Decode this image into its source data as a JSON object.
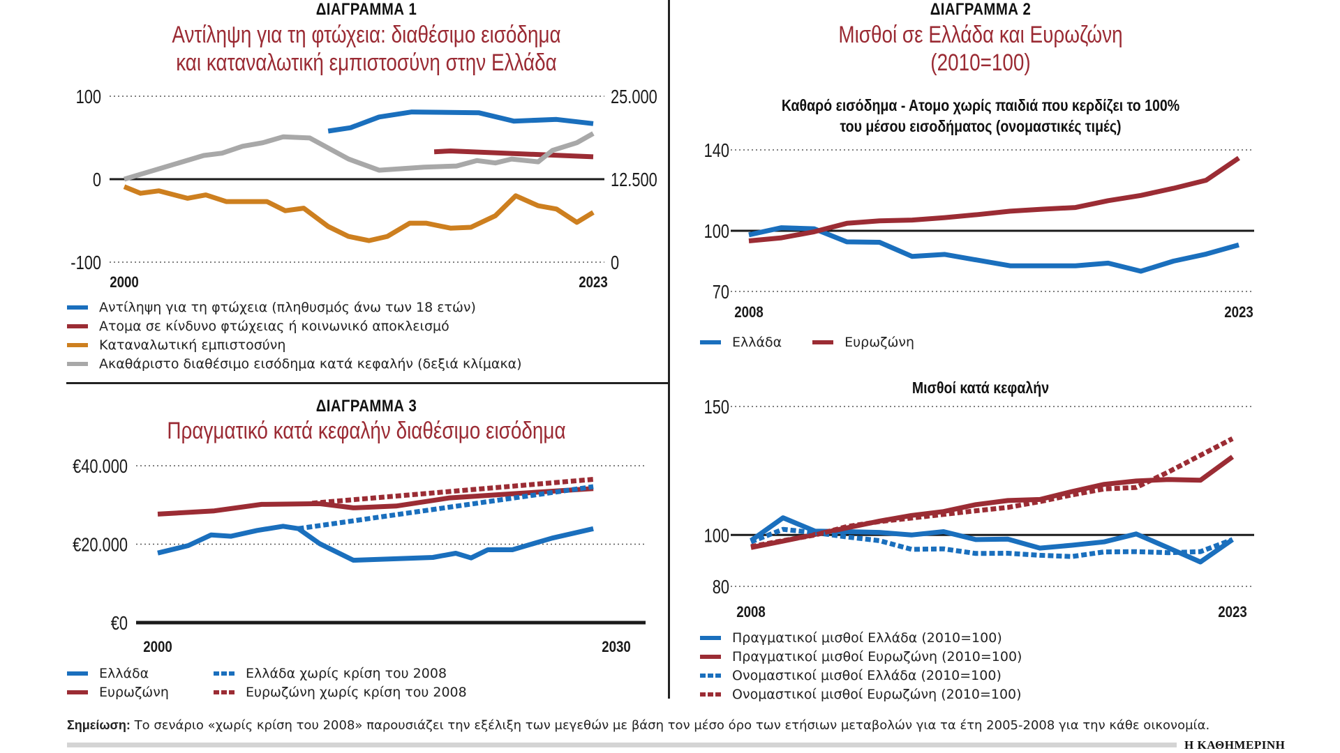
{
  "colors": {
    "blue": "#1a6fbd",
    "red": "#9b2c34",
    "orange": "#cd7f1f",
    "gray": "#a8a8a8",
    "title_red": "#9a2a33"
  },
  "chart1": {
    "kicker": "ΔΙΑΓΡΑΜΜΑ 1",
    "title_line1": "Αντίληψη για τη φτώχεια: διαθέσιμο εισόδημα",
    "title_line2": "και καταναλωτική εμπιστοσύνη στην Ελλάδα",
    "legend": [
      {
        "label": "Αντίληψη για τη φτώχεια (πληθυσμός άνω των 18 ετών)",
        "color": "#1a6fbd",
        "style": "solid"
      },
      {
        "label": "Ατομα σε κίνδυνο φτώχειας ή κοινωνικό αποκλεισμό",
        "color": "#9b2c34",
        "style": "solid"
      },
      {
        "label": "Καταναλωτική εμπιστοσύνη",
        "color": "#cd7f1f",
        "style": "solid"
      },
      {
        "label": "Ακαθάριστο διαθέσιμο εισόδημα κατά κεφαλήν (δεξιά κλίμακα)",
        "color": "#a8a8a8",
        "style": "solid"
      }
    ]
  },
  "chart2": {
    "kicker": "ΔΙΑΓΡΑΜΜΑ 2",
    "title_line1": "Μισθοί σε Ελλάδα και Ευρωζώνη",
    "title_line2": "(2010=100)",
    "top_subtitle_line1": "Καθαρό εισόδημα - Ατομο χωρίς παιδιά που κερδίζει το 100%",
    "top_subtitle_line2": "του μέσου εισοδήματος (ονομαστικές τιμές)",
    "top_legend": [
      {
        "label": "Ελλάδα",
        "color": "#1a6fbd",
        "style": "solid"
      },
      {
        "label": "Ευρωζώνη",
        "color": "#9b2c34",
        "style": "solid"
      }
    ],
    "bottom_subtitle": "Μισθοί κατά κεφαλήν",
    "bottom_legend": [
      {
        "label": "Πραγματικοί μισθοί Ελλάδα (2010=100)",
        "color": "#1a6fbd",
        "style": "solid"
      },
      {
        "label": "Πραγματικοί μισθοί Ευρωζώνη (2010=100)",
        "color": "#9b2c34",
        "style": "solid"
      },
      {
        "label": "Ονομαστικοί μισθοί Ελλάδα (2010=100)",
        "color": "#1a6fbd",
        "style": "dashed"
      },
      {
        "label": "Ονομαστικοί μισθοί Ευρωζώνη (2010=100)",
        "color": "#9b2c34",
        "style": "dashed"
      }
    ]
  },
  "chart3": {
    "kicker": "ΔΙΑΓΡΑΜΜΑ 3",
    "title": "Πραγματικό κατά κεφαλήν διαθέσιμο εισόδημα",
    "legend": [
      {
        "label": "Ελλάδα",
        "color": "#1a6fbd",
        "style": "solid"
      },
      {
        "label": "Ευρωζώνη",
        "color": "#9b2c34",
        "style": "solid"
      },
      {
        "label": "Ελλάδα χωρίς κρίση του 2008",
        "color": "#1a6fbd",
        "style": "dashed"
      },
      {
        "label": "Ευρωζώνη χωρίς κρίση του 2008",
        "color": "#9b2c34",
        "style": "dashed"
      }
    ]
  },
  "footer": {
    "note_label": "Σημείωση:",
    "note_text": "Το σενάριο «χωρίς κρίση του 2008» παρουσιάζει την εξέλιξη των μεγεθών με βάση τον μέσο όρο των ετήσιων μεταβολών για τα έτη 2005-2008 για την κάθε οικονομία.",
    "brand": "Η ΚΑΘΗΜΕΡΙΝΗ"
  },
  "chart_data": [
    {
      "id": "chart1",
      "type": "line",
      "title": "Αντίληψη για τη φτώχεια: διαθέσιμο εισόδημα και καταναλωτική εμπιστοσύνη στην Ελλάδα",
      "xlim": [
        2000,
        2023
      ],
      "x_ticks": [
        {
          "value": 2000,
          "label": "2000"
        },
        {
          "value": 2023,
          "label": "2023"
        }
      ],
      "ylim": [
        -100,
        100
      ],
      "y_ticks": [
        {
          "value": 100,
          "label": "100"
        },
        {
          "value": 0,
          "label": "0"
        },
        {
          "value": -100,
          "label": "-100"
        }
      ],
      "y2lim": [
        0,
        25000
      ],
      "y2_ticks": [
        {
          "value": 25000,
          "label": "25.000"
        },
        {
          "value": 12500,
          "label": "12.500"
        },
        {
          "value": 0,
          "label": "0"
        }
      ],
      "grid": "dotted at 100 and -100, solid baseline at 0",
      "series": [
        {
          "name": "Αντίληψη για τη φτώχεια (πληθυσμός άνω των 18 ετών)",
          "axis": "left",
          "color": "#1a6fbd",
          "style": "solid",
          "x": [
            2010,
            2011.1,
            2012.5,
            2014.1,
            2017.4,
            2019.1,
            2021.2,
            2023
          ],
          "y": [
            58,
            62,
            75,
            81,
            80,
            70,
            72,
            67
          ]
        },
        {
          "name": "Ατομα σε κίνδυνο φτώχειας ή κοινωνικό αποκλεισμό",
          "axis": "left",
          "color": "#9b2c34",
          "style": "solid",
          "x": [
            2015.2,
            2016,
            2023
          ],
          "y": [
            33,
            34,
            27
          ]
        },
        {
          "name": "Καταναλωτική εμπιστοσύνη",
          "axis": "left",
          "color": "#cd7f1f",
          "style": "solid",
          "x": [
            2000,
            2000.8,
            2001.7,
            2003.1,
            2004,
            2005,
            2007,
            2007.9,
            2008.8,
            2010,
            2011,
            2012,
            2012.9,
            2014,
            2014.8,
            2016,
            2017,
            2018.2,
            2019.2,
            2020.3,
            2021.2,
            2022.2,
            2023
          ],
          "y": [
            -9,
            -17,
            -14,
            -23,
            -19,
            -27,
            -27,
            -38,
            -35,
            -57,
            -69,
            -74,
            -69,
            -53,
            -53,
            -59,
            -58,
            -44,
            -20,
            -32,
            -36,
            -52,
            -40
          ]
        },
        {
          "name": "Ακαθάριστο διαθέσιμο εισόδημα κατά κεφαλήν (δεξιά κλίμακα)",
          "axis": "right",
          "color": "#a8a8a8",
          "style": "solid",
          "x": [
            2000,
            2003.9,
            2004.8,
            2005.8,
            2006.8,
            2007.8,
            2009.1,
            2011,
            2012.5,
            2014.7,
            2016.3,
            2017.3,
            2018.2,
            2019,
            2020.3,
            2021,
            2022.2,
            2023
          ],
          "y": [
            12500,
            16070,
            16420,
            17460,
            17990,
            18890,
            18710,
            15540,
            13860,
            14320,
            14490,
            15300,
            14950,
            15540,
            15120,
            16840,
            17990,
            19390
          ]
        }
      ]
    },
    {
      "id": "chart2_top",
      "type": "line",
      "title": "Καθαρό εισόδημα - Ατομο χωρίς παιδιά που κερδίζει το 100% του μέσου εισοδήματος (ονομαστικές τιμές)",
      "xlim": [
        2008,
        2023
      ],
      "x_ticks": [
        {
          "value": 2008,
          "label": "2008"
        },
        {
          "value": 2023,
          "label": "2023"
        }
      ],
      "ylim": [
        70,
        140
      ],
      "y_ticks": [
        {
          "value": 140,
          "label": "140"
        },
        {
          "value": 100,
          "label": "100"
        },
        {
          "value": 70,
          "label": "70"
        }
      ],
      "grid": "dotted at 140 and 70, solid at 100",
      "categories": [
        2008,
        2009,
        2010,
        2011,
        2012,
        2013,
        2014,
        2015,
        2016,
        2017,
        2018,
        2019,
        2020,
        2021,
        2022,
        2023
      ],
      "series": [
        {
          "name": "Ελλάδα",
          "color": "#1a6fbd",
          "style": "solid",
          "values": [
            98,
            101.5,
            101,
            94.5,
            94.3,
            87.3,
            88.3,
            85.5,
            82.7,
            82.7,
            82.7,
            84,
            80,
            85,
            88.5,
            93
          ]
        },
        {
          "name": "Ευρωζώνη",
          "color": "#9b2c34",
          "style": "solid",
          "values": [
            95,
            96.5,
            99.5,
            103.7,
            104.9,
            105.3,
            106.5,
            108,
            109.7,
            110.7,
            111.5,
            114.9,
            117.5,
            121,
            125,
            136
          ]
        }
      ]
    },
    {
      "id": "chart2_bottom",
      "type": "line",
      "title": "Μισθοί κατά κεφαλήν",
      "xlim": [
        2008,
        2023
      ],
      "x_ticks": [
        {
          "value": 2008,
          "label": "2008"
        },
        {
          "value": 2023,
          "label": "2023"
        }
      ],
      "ylim": [
        80,
        150
      ],
      "y_ticks": [
        {
          "value": 150,
          "label": "150"
        },
        {
          "value": 100,
          "label": "100"
        },
        {
          "value": 80,
          "label": "80"
        }
      ],
      "grid": "dotted at 150 and 80, solid at 100",
      "categories": [
        2008,
        2009,
        2010,
        2011,
        2012,
        2013,
        2014,
        2015,
        2016,
        2017,
        2018,
        2019,
        2020,
        2021,
        2022,
        2023
      ],
      "series": [
        {
          "name": "Πραγματικοί μισθοί Ελλάδα (2010=100)",
          "color": "#1a6fbd",
          "style": "solid",
          "values": [
            97.8,
            106.7,
            101.5,
            101.3,
            101,
            100,
            101.3,
            98.2,
            98.4,
            94.9,
            96,
            97.3,
            100.4,
            95,
            89.5,
            98.2
          ]
        },
        {
          "name": "Πραγματικοί μισθοί Ευρωζώνη (2010=100)",
          "color": "#9b2c34",
          "style": "solid",
          "values": [
            95.1,
            97.6,
            100.2,
            102.8,
            105.4,
            107.6,
            109.1,
            111.8,
            113.4,
            113.8,
            116.9,
            119.7,
            121,
            121.6,
            121.3,
            130.4
          ]
        },
        {
          "name": "Ονομαστικοί μισθοί Ελλάδα (2010=100)",
          "color": "#1a6fbd",
          "style": "dashed",
          "values": [
            97.3,
            102.2,
            100.9,
            99.2,
            97.8,
            94.4,
            94.6,
            92.8,
            92.9,
            92.1,
            91.6,
            93.4,
            93.5,
            93.1,
            93.5,
            98.2
          ]
        },
        {
          "name": "Ονομαστικοί μισθοί Ευρωζώνη (2010=100)",
          "color": "#9b2c34",
          "style": "dashed",
          "values": [
            95.5,
            97.8,
            100,
            103.3,
            105.2,
            106.6,
            108,
            109.4,
            110.7,
            113,
            115.6,
            117.9,
            118.5,
            124.5,
            131,
            137.5
          ]
        }
      ]
    },
    {
      "id": "chart3",
      "type": "line",
      "title": "Πραγματικό κατά κεφαλήν διαθέσιμο εισόδημα",
      "xlim": [
        2000,
        2030
      ],
      "x_ticks": [
        {
          "value": 2000,
          "label": "2000"
        },
        {
          "value": 2030,
          "label": "2030"
        }
      ],
      "ylim": [
        0,
        40000
      ],
      "y_ticks": [
        {
          "value": 40000,
          "label": "€40.000"
        },
        {
          "value": 20000,
          "label": "€20.000"
        },
        {
          "value": 0,
          "label": "€0"
        }
      ],
      "grid": "dotted at 40000 and 20000, solid baseline at 0",
      "series": [
        {
          "name": "Ελλάδα",
          "color": "#1a6fbd",
          "style": "solid",
          "x": [
            2000,
            2002,
            2003.5,
            2004.8,
            2006.5,
            2008.2,
            2009.2,
            2010.6,
            2012.8,
            2018,
            2019.5,
            2020.5,
            2021.6,
            2023.2,
            2025.8,
            2028.5
          ],
          "y": [
            17740,
            19640,
            22370,
            22020,
            23500,
            24570,
            23970,
            20120,
            15910,
            16620,
            17690,
            16500,
            18580,
            18580,
            21550,
            23950
          ]
        },
        {
          "name": "Ευρωζώνη",
          "color": "#9b2c34",
          "style": "solid",
          "x": [
            2000,
            2003.7,
            2006.8,
            2010.6,
            2012.8,
            2015.6,
            2019.1,
            2022.4,
            2025.4,
            2028.5
          ],
          "y": [
            27660,
            28490,
            30150,
            30330,
            29260,
            29730,
            31810,
            32640,
            33410,
            34180
          ]
        },
        {
          "name": "Ελλάδα χωρίς κρίση του 2008",
          "color": "#1a6fbd",
          "style": "dashed",
          "x": [
            2009.2,
            2028.5
          ],
          "y": [
            23970,
            34660
          ]
        },
        {
          "name": "Ευρωζώνη χωρίς κρίση του 2008",
          "color": "#9b2c34",
          "style": "dashed",
          "x": [
            2010.1,
            2028.5
          ],
          "y": [
            30450,
            36540
          ]
        }
      ]
    }
  ]
}
